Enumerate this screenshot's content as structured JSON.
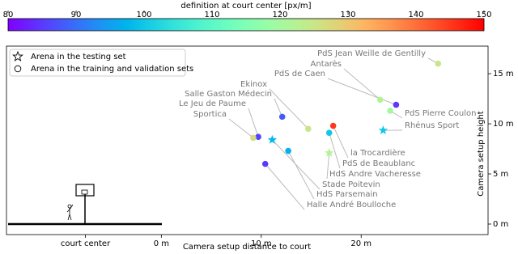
{
  "chart_data": {
    "type": "scatter",
    "xlabel": "Camera setup distance to court",
    "ylabel": "Camera setup height",
    "xlim": [
      -15.5,
      32.7
    ],
    "ylim": [
      -1.05,
      17.75
    ],
    "xticks": [
      {
        "value": -7.6,
        "label": "court center"
      },
      {
        "value": 0,
        "label": "0 m"
      },
      {
        "value": 10,
        "label": "10 m"
      },
      {
        "value": 20,
        "label": "20 m"
      }
    ],
    "yticks": [
      {
        "value": 0,
        "label": "0 m"
      },
      {
        "value": 5,
        "label": "5 m"
      },
      {
        "value": 10,
        "label": "10 m"
      },
      {
        "value": 15,
        "label": "15 m"
      }
    ],
    "colorbar": {
      "label": "definition at court center [px/m]",
      "colormap": "rainbow",
      "clim": [
        80,
        150
      ],
      "ticks": [
        80,
        90,
        100,
        110,
        120,
        130,
        140,
        150
      ]
    },
    "legend": "upper left",
    "series": [
      {
        "name": "Arena in the testing set",
        "marker": "star",
        "labels": [
          "Rhénus Sport",
          "HdS Andre Vacheresse",
          "Stade Poitevin"
        ],
        "x": [
          22.2,
          16.8,
          11.1
        ],
        "values": [
          9.35,
          7.1,
          8.4
        ],
        "c": [
          100,
          122,
          98
        ]
      },
      {
        "name": "Arena in the training and validation sets",
        "marker": "circle",
        "labels": [
          "PdS Jean Weille de Gentilly",
          "Antarès",
          "PdS de Caen",
          "PdS Pierre Coulon",
          "Ekinox",
          "Salle Gaston Médecin",
          "Le Jeu de Paume",
          "Sportica",
          "la Trocardière",
          "PdS de Beaublanc",
          "HdS Parsemain",
          "Halle André Boulloche"
        ],
        "x": [
          27.7,
          21.9,
          23.5,
          22.9,
          14.7,
          12.1,
          9.7,
          9.2,
          17.2,
          16.8,
          12.7,
          10.4
        ],
        "values": [
          16.0,
          12.4,
          11.9,
          11.3,
          9.5,
          10.7,
          8.7,
          8.6,
          9.8,
          9.1,
          7.3,
          6.0
        ],
        "c": [
          125,
          122,
          85,
          120,
          125,
          88,
          86,
          127,
          145,
          100,
          97,
          85
        ]
      }
    ]
  }
}
